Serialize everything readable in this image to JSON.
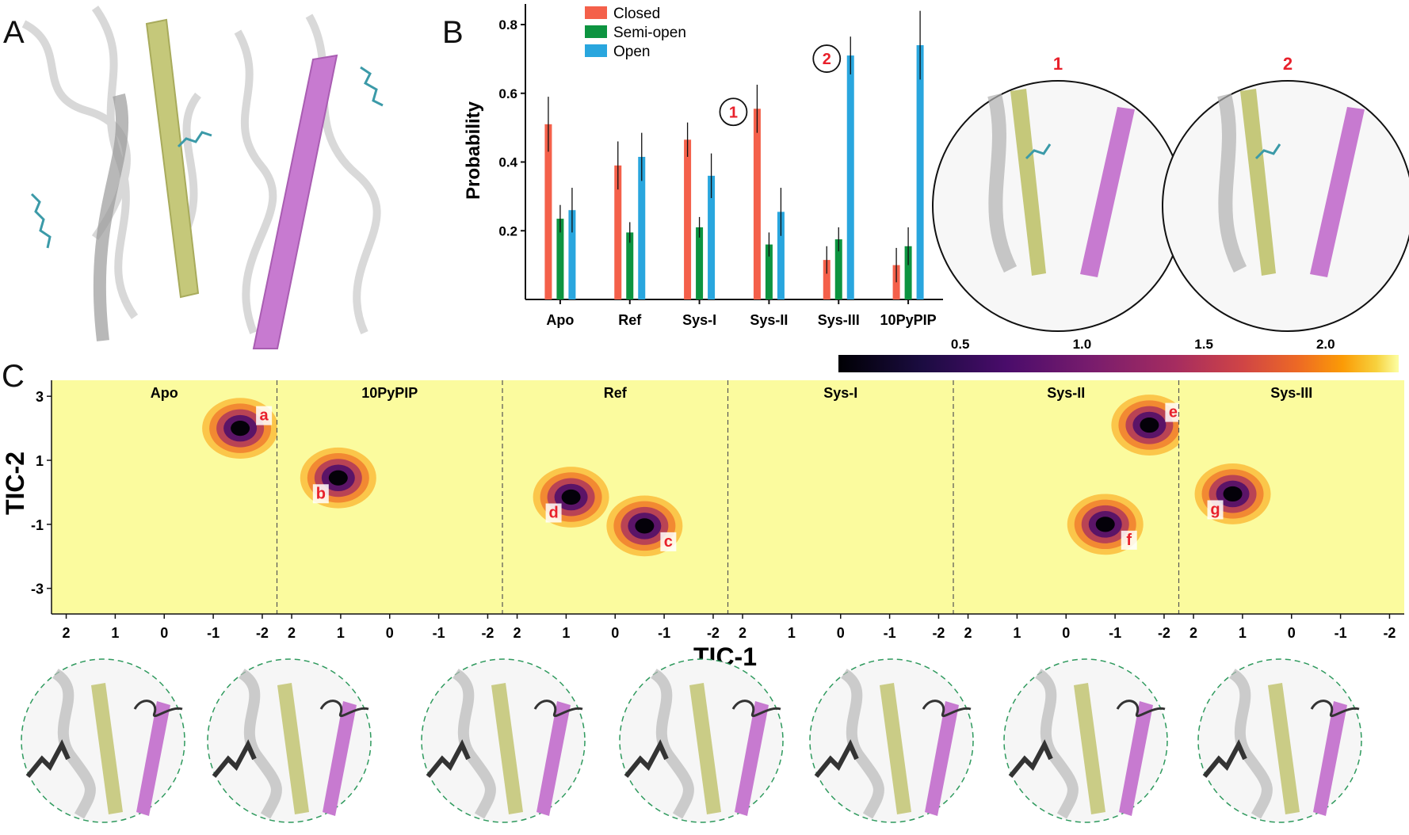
{
  "panel_labels": {
    "a": "A",
    "b": "B",
    "c": "C"
  },
  "colors": {
    "closed": "#f4604a",
    "semi_open": "#0d9440",
    "open": "#29a6de",
    "helix_yellow": "#c5c87a",
    "helix_purple": "#c77ad0",
    "tic_background": "#fbfb9e",
    "protein_grey": "#c8c8c8",
    "marker_red": "#e8202b"
  },
  "chart_data": [
    {
      "type": "bar",
      "panel": "B",
      "ylabel": "Probability",
      "categories": [
        "Apo",
        "Ref",
        "Sys-I",
        "Sys-II",
        "Sys-III",
        "10PyPIP"
      ],
      "yticks": [
        "0.2",
        "0.4",
        "0.6",
        "0.8"
      ],
      "ylim": [
        0,
        0.86
      ],
      "legend_position": "top",
      "series": [
        {
          "name": "Closed",
          "color": "#f4604a",
          "values": [
            0.51,
            0.39,
            0.465,
            0.555,
            0.115,
            0.1
          ],
          "errors": [
            0.08,
            0.07,
            0.05,
            0.07,
            0.04,
            0.05
          ]
        },
        {
          "name": "Semi-open",
          "color": "#0d9440",
          "values": [
            0.235,
            0.195,
            0.21,
            0.16,
            0.175,
            0.155
          ],
          "errors": [
            0.04,
            0.03,
            0.03,
            0.035,
            0.035,
            0.055
          ]
        },
        {
          "name": "Open",
          "color": "#29a6de",
          "values": [
            0.26,
            0.415,
            0.36,
            0.255,
            0.71,
            0.74
          ],
          "errors": [
            0.065,
            0.07,
            0.065,
            0.07,
            0.055,
            0.1
          ]
        }
      ],
      "annotations": [
        {
          "label": "1",
          "category": "Sys-II",
          "series": "Closed"
        },
        {
          "label": "2",
          "category": "Sys-III",
          "series": "Open"
        }
      ],
      "inset_labels": [
        "1",
        "2"
      ]
    },
    {
      "type": "heatmap",
      "panel": "C",
      "xlabel": "TIC-1",
      "ylabel": "TIC-2",
      "x_axis_reversed": true,
      "xticks": [
        "2",
        "1",
        "0",
        "-1",
        "-2"
      ],
      "yticks": [
        "3",
        "1",
        "-1",
        "-3"
      ],
      "colorbar": {
        "ticks": [
          "0.5",
          "1.0",
          "1.5",
          "2.0"
        ],
        "colormap": "inferno",
        "position": "top-right"
      },
      "subplots": [
        {
          "title": "Apo",
          "states": [
            {
              "label": "a",
              "x": -1.55,
              "y": 2.0
            }
          ]
        },
        {
          "title": "10PyPIP",
          "states": [
            {
              "label": "b",
              "x": 1.05,
              "y": 0.45
            }
          ]
        },
        {
          "title": "Ref",
          "states": [
            {
              "label": "c",
              "x": -0.6,
              "y": -1.05
            },
            {
              "label": "d",
              "x": 0.9,
              "y": -0.15
            }
          ]
        },
        {
          "title": "Sys-I",
          "states": []
        },
        {
          "title": "Sys-II",
          "states": [
            {
              "label": "e",
              "x": -1.7,
              "y": 2.1
            },
            {
              "label": "f",
              "x": -0.8,
              "y": -1.0
            }
          ]
        },
        {
          "title": "Sys-III",
          "states": [
            {
              "label": "g",
              "x": 1.2,
              "y": -0.05
            }
          ]
        }
      ]
    }
  ]
}
